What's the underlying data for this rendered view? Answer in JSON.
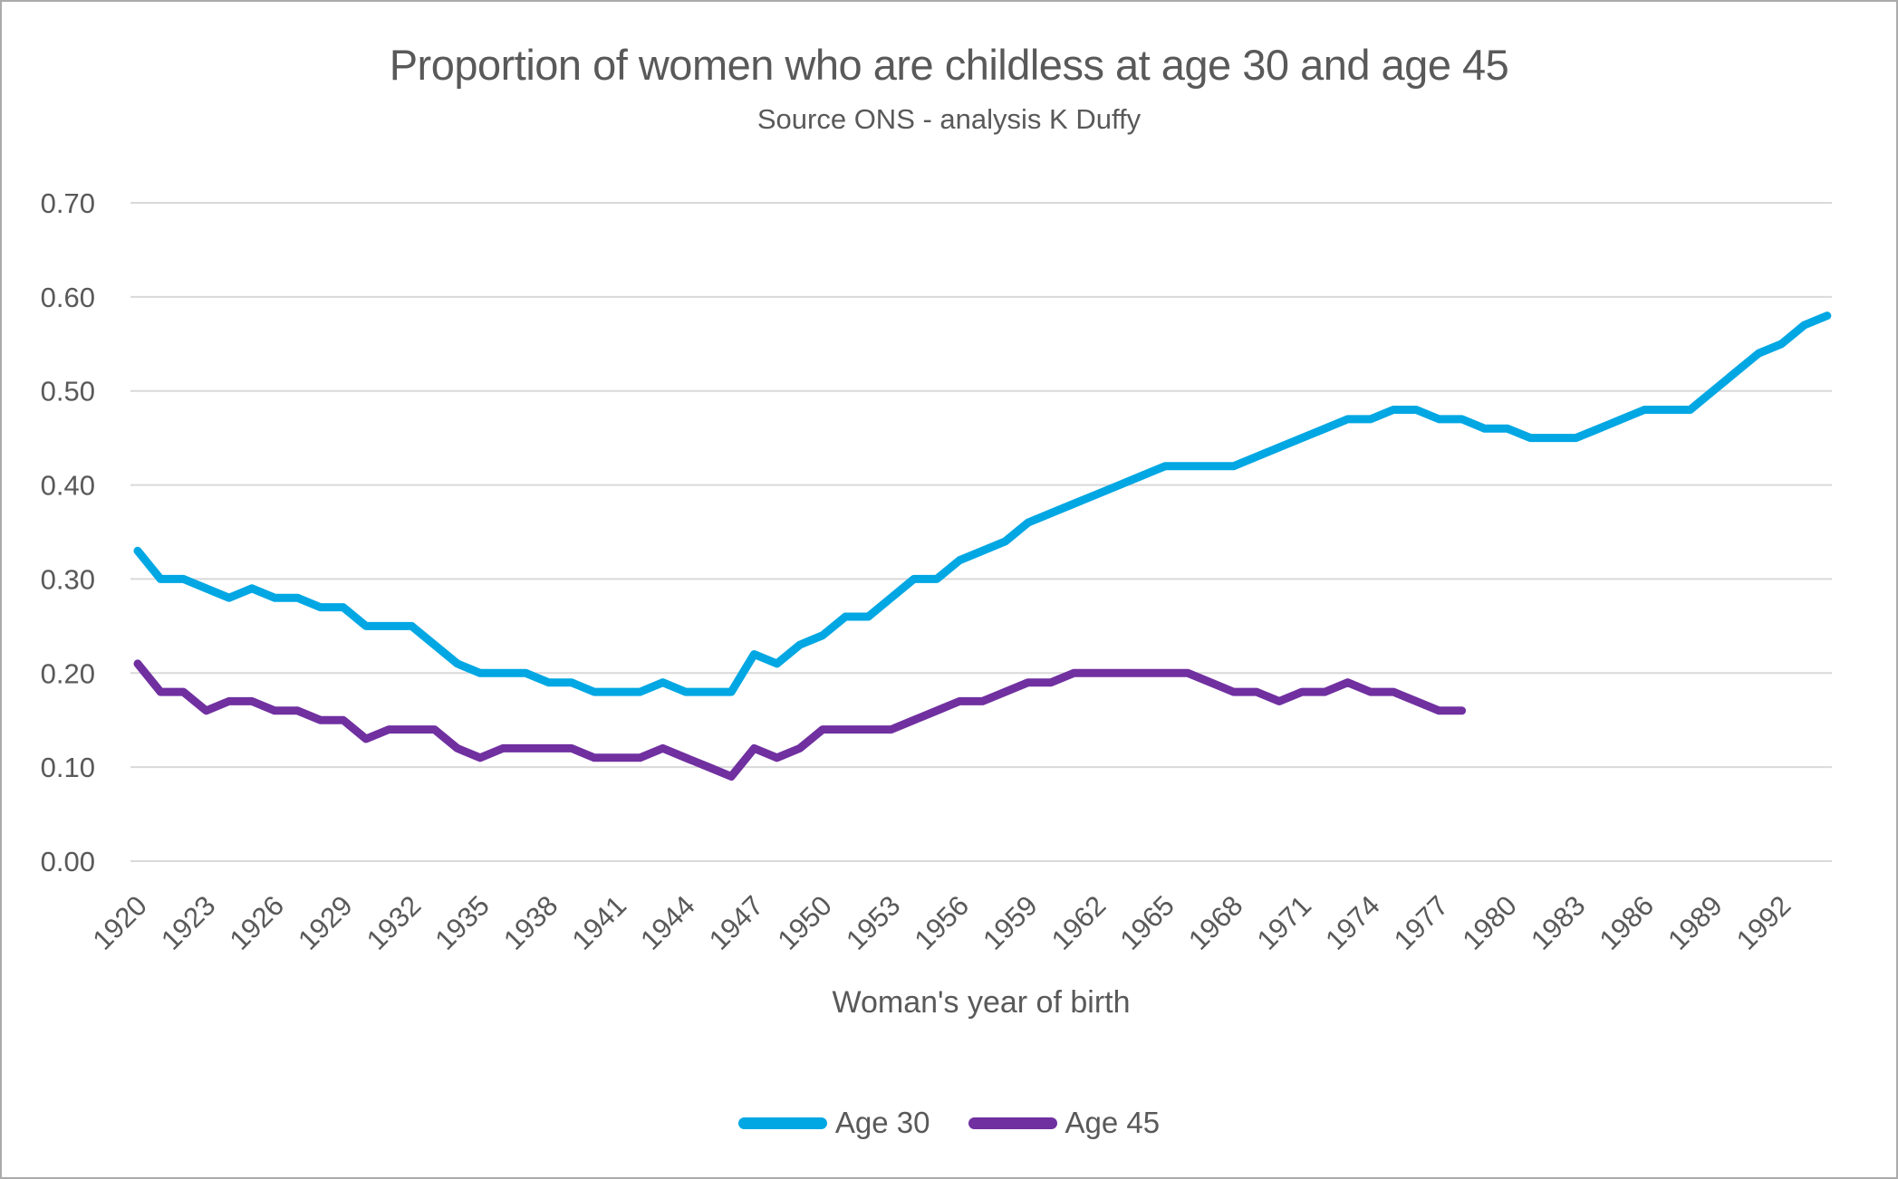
{
  "chart_data": {
    "type": "line",
    "title": "Proportion of women who are childless at age 30 and age 45",
    "subtitle": "Source ONS - analysis K Duffy",
    "xlabel": "Woman's year of birth",
    "ylabel": "",
    "ylim": [
      0.0,
      0.7
    ],
    "ytick_step": 0.1,
    "ytick_labels": [
      "0.00",
      "0.10",
      "0.20",
      "0.30",
      "0.40",
      "0.50",
      "0.60",
      "0.70"
    ],
    "xtick_labels": [
      1920,
      1923,
      1926,
      1929,
      1932,
      1935,
      1938,
      1941,
      1944,
      1947,
      1950,
      1953,
      1956,
      1959,
      1962,
      1965,
      1968,
      1971,
      1974,
      1977,
      1980,
      1983,
      1986,
      1989,
      1992
    ],
    "grid": "horizontal",
    "legend_position": "bottom",
    "series": [
      {
        "name": "Age 30",
        "color": "#00a7e3",
        "start_year": 1920,
        "end_year": 1994,
        "values": [
          0.33,
          0.3,
          0.3,
          0.29,
          0.28,
          0.29,
          0.28,
          0.28,
          0.27,
          0.27,
          0.25,
          0.25,
          0.25,
          0.23,
          0.21,
          0.2,
          0.2,
          0.2,
          0.19,
          0.19,
          0.18,
          0.18,
          0.18,
          0.19,
          0.18,
          0.18,
          0.18,
          0.22,
          0.21,
          0.23,
          0.24,
          0.26,
          0.26,
          0.28,
          0.3,
          0.3,
          0.32,
          0.33,
          0.34,
          0.36,
          0.37,
          0.38,
          0.39,
          0.4,
          0.41,
          0.42,
          0.42,
          0.42,
          0.42,
          0.43,
          0.44,
          0.45,
          0.46,
          0.47,
          0.47,
          0.48,
          0.48,
          0.47,
          0.47,
          0.46,
          0.46,
          0.45,
          0.45,
          0.45,
          0.46,
          0.47,
          0.48,
          0.48,
          0.48,
          0.5,
          0.52,
          0.54,
          0.55,
          0.57,
          0.58
        ]
      },
      {
        "name": "Age 45",
        "color": "#7030a0",
        "start_year": 1920,
        "end_year": 1978,
        "values": [
          0.21,
          0.18,
          0.18,
          0.16,
          0.17,
          0.17,
          0.16,
          0.16,
          0.15,
          0.15,
          0.13,
          0.14,
          0.14,
          0.14,
          0.12,
          0.11,
          0.12,
          0.12,
          0.12,
          0.12,
          0.11,
          0.11,
          0.11,
          0.12,
          0.11,
          0.1,
          0.09,
          0.12,
          0.11,
          0.12,
          0.14,
          0.14,
          0.14,
          0.14,
          0.15,
          0.16,
          0.17,
          0.17,
          0.18,
          0.19,
          0.19,
          0.2,
          0.2,
          0.2,
          0.2,
          0.2,
          0.2,
          0.19,
          0.18,
          0.18,
          0.17,
          0.18,
          0.18,
          0.19,
          0.18,
          0.18,
          0.17,
          0.16,
          0.16
        ]
      }
    ]
  },
  "colors": {
    "text": "#595959",
    "gridline": "#d9d9d9",
    "border": "#ababab",
    "background": "#ffffff"
  }
}
